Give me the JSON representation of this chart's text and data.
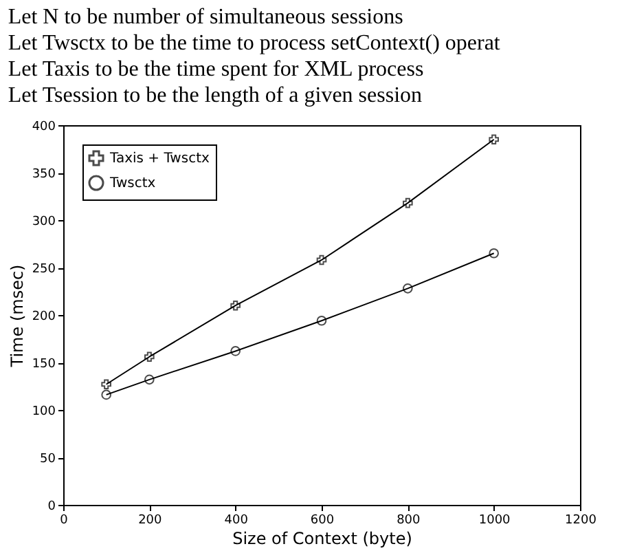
{
  "chart_data": {
    "type": "line",
    "xlabel": "Size of Context (byte)",
    "ylabel": "Time (msec)",
    "annotations": [
      "Let N to be number of simultaneous sessions",
      "Let Twsctx to be the time to process setContext() operat",
      "Let Taxis to be the time spent for XML process",
      "Let Tsession to be the length of a given session"
    ],
    "x": [
      100,
      200,
      400,
      600,
      800,
      1000
    ],
    "series": [
      {
        "name": "Taxis + Twsctx",
        "color": "#000000",
        "marker": "cross",
        "values": [
          127,
          156,
          210,
          258,
          318,
          385
        ]
      },
      {
        "name": "Twsctx",
        "color": "#000000",
        "marker": "circle",
        "values": [
          116,
          132,
          162,
          194,
          228,
          265
        ]
      }
    ],
    "xlim": [
      0,
      1200
    ],
    "xticks": [
      0,
      200,
      400,
      600,
      800,
      1000,
      1200
    ],
    "ylim": [
      0,
      400
    ],
    "yticks": [
      0,
      50,
      100,
      150,
      200,
      250,
      300,
      350,
      400
    ],
    "grid": false,
    "legend": "top left",
    "line_style": "solid"
  }
}
